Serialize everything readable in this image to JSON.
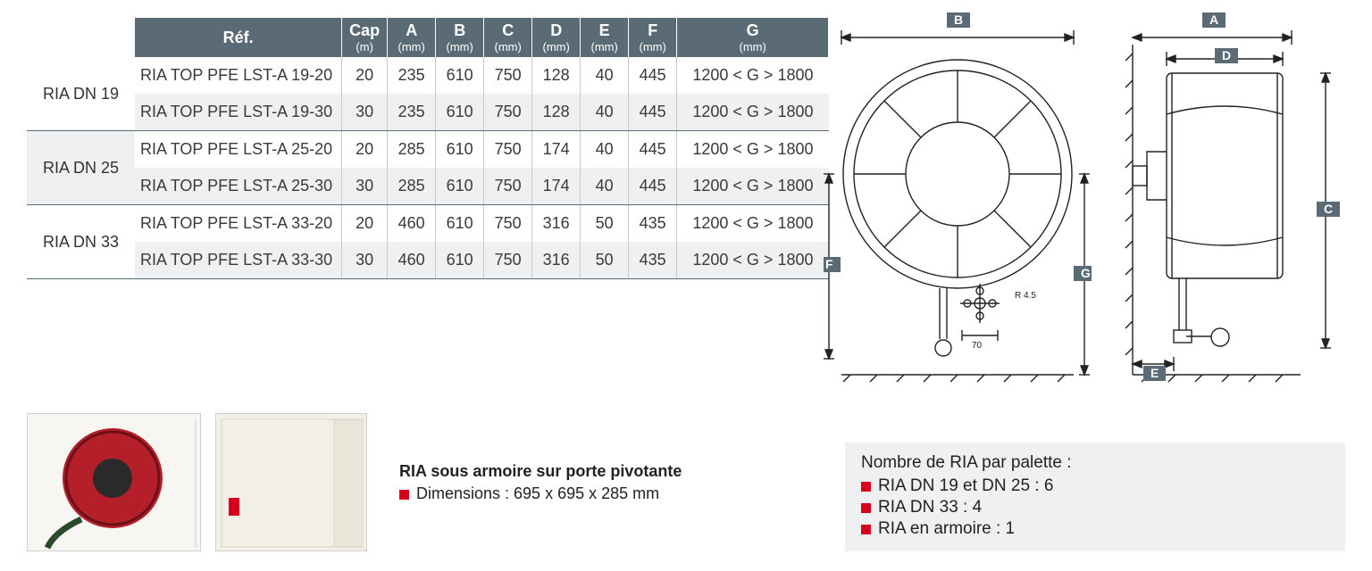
{
  "colors": {
    "header_bg": "#5a6b76",
    "header_fg": "#ffffff",
    "row_alt_bg": "#eef0f1",
    "cell_border": "#c9c9c9",
    "group_border": "#5a6b76",
    "text": "#3a3a3a",
    "bullet": "#d6001c",
    "reel_red": "#b41f2a",
    "cabinet_beige": "#f2efe6",
    "diagram_stroke": "#222222"
  },
  "table": {
    "type": "table",
    "headers": [
      {
        "label": "Réf.",
        "unit": ""
      },
      {
        "label": "Cap",
        "unit": "(m)"
      },
      {
        "label": "A",
        "unit": "(mm)"
      },
      {
        "label": "B",
        "unit": "(mm)"
      },
      {
        "label": "C",
        "unit": "(mm)"
      },
      {
        "label": "D",
        "unit": "(mm)"
      },
      {
        "label": "E",
        "unit": "(mm)"
      },
      {
        "label": "F",
        "unit": "(mm)"
      },
      {
        "label": "G",
        "unit": "(mm)"
      }
    ],
    "groups": [
      {
        "label": "RIA DN 19",
        "rows": [
          {
            "ref": "RIA TOP PFE LST-A 19-20",
            "cap": "20",
            "A": "235",
            "B": "610",
            "C": "750",
            "D": "128",
            "E": "40",
            "F": "445",
            "G": "1200 < G > 1800"
          },
          {
            "ref": "RIA TOP PFE LST-A 19-30",
            "cap": "30",
            "A": "235",
            "B": "610",
            "C": "750",
            "D": "128",
            "E": "40",
            "F": "445",
            "G": "1200 < G > 1800"
          }
        ]
      },
      {
        "label": "RIA DN 25",
        "rows": [
          {
            "ref": "RIA TOP PFE LST-A 25-20",
            "cap": "20",
            "A": "285",
            "B": "610",
            "C": "750",
            "D": "174",
            "E": "40",
            "F": "445",
            "G": "1200 < G > 1800"
          },
          {
            "ref": "RIA TOP PFE LST-A 25-30",
            "cap": "30",
            "A": "285",
            "B": "610",
            "C": "750",
            "D": "174",
            "E": "40",
            "F": "445",
            "G": "1200 < G > 1800"
          }
        ]
      },
      {
        "label": "RIA DN 33",
        "rows": [
          {
            "ref": "RIA TOP PFE LST-A 33-20",
            "cap": "20",
            "A": "460",
            "B": "610",
            "C": "750",
            "D": "316",
            "E": "50",
            "F": "435",
            "G": "1200 < G > 1800"
          },
          {
            "ref": "RIA TOP PFE LST-A 33-30",
            "cap": "30",
            "A": "460",
            "B": "610",
            "C": "750",
            "D": "316",
            "E": "50",
            "F": "435",
            "G": "1200 < G > 1800"
          }
        ]
      }
    ]
  },
  "diagram": {
    "type": "diagram",
    "front": {
      "tags": [
        "B",
        "F",
        "G"
      ],
      "detail_radius": "R 4.5",
      "detail_width": "70"
    },
    "side": {
      "tags": [
        "A",
        "C",
        "D",
        "E"
      ]
    },
    "stroke": "#222222",
    "stroke_width": 1.4,
    "tag_bg": "#5a6b76",
    "tag_fg": "#ffffff"
  },
  "cabinet": {
    "title": "RIA sous armoire sur porte pivotante",
    "dim_line": "Dimensions : 695 x 695 x 285 mm"
  },
  "pallet": {
    "title": "Nombre de RIA par palette :",
    "items": [
      "RIA DN 19 et DN 25 : 6",
      "RIA DN 33 : 4",
      "RIA en armoire : 1"
    ]
  }
}
